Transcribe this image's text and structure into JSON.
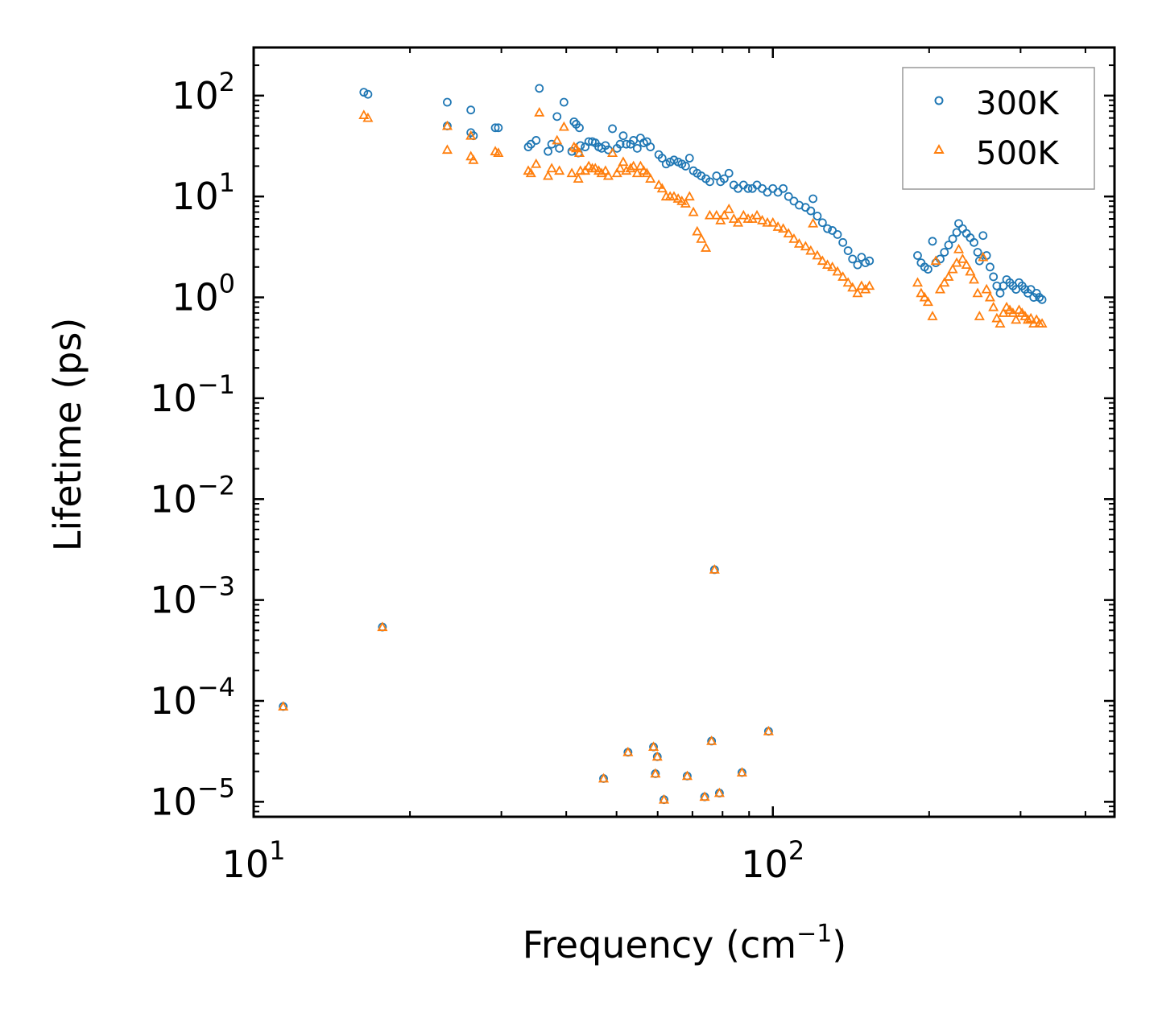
{
  "chart_data": {
    "type": "scatter",
    "title": "",
    "xlabel": "Frequency (cm",
    "xlabel_sup": "−1",
    "xlabel_suffix": ")",
    "ylabel": "Lifetime (ps)",
    "xscale": "log",
    "yscale": "log",
    "xlim": [
      10,
      455
    ],
    "ylim": [
      7.1e-06,
      300
    ],
    "x_ticks": [
      {
        "value": 10,
        "base": "10",
        "exp": "1"
      },
      {
        "value": 100,
        "base": "10",
        "exp": "2"
      }
    ],
    "y_ticks": [
      {
        "value": 100,
        "base": "10",
        "exp": "2"
      },
      {
        "value": 10,
        "base": "10",
        "exp": "1"
      },
      {
        "value": 1,
        "base": "10",
        "exp": "0"
      },
      {
        "value": 0.1,
        "base": "10",
        "exp": "−1"
      },
      {
        "value": 0.01,
        "base": "10",
        "exp": "−2"
      },
      {
        "value": 0.001,
        "base": "10",
        "exp": "−3"
      },
      {
        "value": 0.0001,
        "base": "10",
        "exp": "−4"
      },
      {
        "value": 1e-05,
        "base": "10",
        "exp": "−5"
      }
    ],
    "legend_position": "top-right",
    "series": [
      {
        "name": "300K",
        "marker": "circle",
        "color": "#1f77b4",
        "points": [
          [
            11.4,
            8.8e-05
          ],
          [
            16.3,
            108
          ],
          [
            16.6,
            103
          ],
          [
            17.7,
            0.00054
          ],
          [
            23.6,
            86
          ],
          [
            23.6,
            50
          ],
          [
            26.2,
            72
          ],
          [
            26.2,
            43
          ],
          [
            26.5,
            40
          ],
          [
            29.2,
            48
          ],
          [
            29.6,
            48
          ],
          [
            33.8,
            31
          ],
          [
            34.2,
            33
          ],
          [
            35.0,
            36
          ],
          [
            35.5,
            118
          ],
          [
            36.9,
            28
          ],
          [
            37.5,
            33
          ],
          [
            38.4,
            62
          ],
          [
            38.8,
            30
          ],
          [
            39.6,
            86
          ],
          [
            41.0,
            28
          ],
          [
            41.4,
            55
          ],
          [
            41.8,
            52
          ],
          [
            42.2,
            27
          ],
          [
            42.4,
            48
          ],
          [
            42.6,
            32
          ],
          [
            43.5,
            31
          ],
          [
            44.2,
            35
          ],
          [
            44.9,
            35
          ],
          [
            45.5,
            34
          ],
          [
            46.2,
            31
          ],
          [
            46.8,
            30
          ],
          [
            47.2,
            1.7e-05
          ],
          [
            47.6,
            32
          ],
          [
            48.2,
            29
          ],
          [
            49.1,
            47
          ],
          [
            50.1,
            30
          ],
          [
            50.8,
            33
          ],
          [
            51.5,
            40
          ],
          [
            52.2,
            33
          ],
          [
            52.6,
            3.1e-05
          ],
          [
            53.2,
            33
          ],
          [
            53.9,
            36
          ],
          [
            54.8,
            30
          ],
          [
            55.6,
            38
          ],
          [
            56.4,
            34
          ],
          [
            57.2,
            35
          ],
          [
            58.1,
            31
          ],
          [
            58.9,
            3.5e-05
          ],
          [
            59.4,
            1.9e-05
          ],
          [
            59.9,
            2.8e-05
          ],
          [
            60.3,
            26
          ],
          [
            61.2,
            24
          ],
          [
            61.7,
            1.05e-05
          ],
          [
            62.3,
            21
          ],
          [
            63.4,
            22
          ],
          [
            64.5,
            23
          ],
          [
            65.7,
            22
          ],
          [
            66.8,
            21
          ],
          [
            67.9,
            20
          ],
          [
            68.4,
            1.8e-05
          ],
          [
            69.1,
            24
          ],
          [
            70.3,
            18
          ],
          [
            71.5,
            17
          ],
          [
            72.8,
            16
          ],
          [
            73.9,
            1.12e-05
          ],
          [
            74.3,
            15
          ],
          [
            75.6,
            14
          ],
          [
            76.2,
            4e-05
          ],
          [
            77.2,
            0.002
          ],
          [
            77.9,
            16
          ],
          [
            78.9,
            1.22e-05
          ],
          [
            79.3,
            14
          ],
          [
            80.6,
            15
          ],
          [
            82.3,
            17
          ],
          [
            84.1,
            13
          ],
          [
            85.7,
            12
          ],
          [
            87.2,
            1.95e-05
          ],
          [
            87.8,
            13
          ],
          [
            89.6,
            12
          ],
          [
            91.3,
            12
          ],
          [
            93.2,
            13
          ],
          [
            95.4,
            12
          ],
          [
            97.6,
            11
          ],
          [
            98.1,
            5e-05
          ],
          [
            100.0,
            12
          ],
          [
            102.3,
            11
          ],
          [
            104.7,
            12
          ],
          [
            107.2,
            10
          ],
          [
            109.8,
            9.0
          ],
          [
            112.4,
            8.2
          ],
          [
            115.6,
            7.8
          ],
          [
            118.3,
            7.2
          ],
          [
            119.5,
            9.5
          ],
          [
            121.8,
            6.4
          ],
          [
            124.6,
            5.5
          ],
          [
            127.4,
            4.8
          ],
          [
            130.2,
            4.6
          ],
          [
            133.2,
            4.2
          ],
          [
            136.4,
            3.5
          ],
          [
            139.6,
            2.9
          ],
          [
            142.4,
            2.4
          ],
          [
            145.6,
            2.1
          ],
          [
            148.2,
            2.5
          ],
          [
            150.8,
            2.2
          ],
          [
            153.5,
            2.3
          ],
          [
            190.0,
            2.6
          ],
          [
            193.0,
            2.2
          ],
          [
            196.0,
            2.0
          ],
          [
            199.0,
            1.9
          ],
          [
            203.0,
            3.6
          ],
          [
            206.0,
            2.2
          ],
          [
            210.0,
            2.4
          ],
          [
            214.0,
            2.8
          ],
          [
            218.0,
            3.3
          ],
          [
            222.0,
            3.8
          ],
          [
            226.0,
            4.4
          ],
          [
            228.0,
            5.4
          ],
          [
            232.0,
            4.8
          ],
          [
            236.0,
            4.3
          ],
          [
            240.0,
            3.9
          ],
          [
            244.0,
            3.5
          ],
          [
            248.0,
            2.8
          ],
          [
            250.0,
            2.3
          ],
          [
            254.0,
            4.1
          ],
          [
            258.0,
            2.6
          ],
          [
            262.0,
            2.0
          ],
          [
            266.0,
            1.6
          ],
          [
            270.0,
            1.3
          ],
          [
            274.0,
            1.1
          ],
          [
            278.0,
            1.3
          ],
          [
            282.0,
            1.5
          ],
          [
            286.0,
            1.4
          ],
          [
            290.0,
            1.3
          ],
          [
            294.0,
            1.2
          ],
          [
            298.0,
            1.4
          ],
          [
            302.0,
            1.3
          ],
          [
            306.0,
            1.2
          ],
          [
            310.0,
            1.1
          ],
          [
            314.0,
            1.2
          ],
          [
            318.0,
            1.0
          ],
          [
            322.0,
            1.1
          ],
          [
            326.0,
            1.0
          ],
          [
            330.0,
            0.95
          ]
        ]
      },
      {
        "name": "500K",
        "marker": "triangle",
        "color": "#ff7f0e",
        "points": [
          [
            11.4,
            8.8e-05
          ],
          [
            16.3,
            64
          ],
          [
            16.6,
            60
          ],
          [
            17.7,
            0.00054
          ],
          [
            23.6,
            50
          ],
          [
            23.6,
            29
          ],
          [
            26.2,
            40
          ],
          [
            26.2,
            25
          ],
          [
            26.5,
            23
          ],
          [
            29.2,
            28
          ],
          [
            29.6,
            27
          ],
          [
            33.8,
            18
          ],
          [
            34.2,
            17
          ],
          [
            35.0,
            21
          ],
          [
            35.5,
            68
          ],
          [
            36.9,
            16
          ],
          [
            37.5,
            19
          ],
          [
            38.4,
            36
          ],
          [
            38.8,
            18
          ],
          [
            39.6,
            49
          ],
          [
            41.0,
            17
          ],
          [
            41.4,
            31
          ],
          [
            41.8,
            30
          ],
          [
            42.2,
            15
          ],
          [
            42.4,
            27
          ],
          [
            42.6,
            18
          ],
          [
            43.5,
            18
          ],
          [
            44.2,
            20
          ],
          [
            44.9,
            19
          ],
          [
            45.5,
            19
          ],
          [
            46.2,
            18
          ],
          [
            46.8,
            17
          ],
          [
            47.2,
            1.7e-05
          ],
          [
            47.6,
            18
          ],
          [
            48.2,
            16
          ],
          [
            49.1,
            27
          ],
          [
            50.1,
            17
          ],
          [
            50.8,
            19
          ],
          [
            51.5,
            22
          ],
          [
            52.2,
            18
          ],
          [
            52.6,
            3.1e-05
          ],
          [
            53.2,
            19
          ],
          [
            53.9,
            20
          ],
          [
            54.8,
            17
          ],
          [
            55.6,
            20
          ],
          [
            56.4,
            18
          ],
          [
            57.2,
            17
          ],
          [
            58.1,
            15
          ],
          [
            58.9,
            3.5e-05
          ],
          [
            59.4,
            1.9e-05
          ],
          [
            59.9,
            2.8e-05
          ],
          [
            60.3,
            13
          ],
          [
            61.2,
            12
          ],
          [
            61.7,
            1.05e-05
          ],
          [
            62.3,
            10
          ],
          [
            63.4,
            10
          ],
          [
            64.5,
            10
          ],
          [
            65.7,
            9.5
          ],
          [
            66.8,
            9
          ],
          [
            67.9,
            8.5
          ],
          [
            68.4,
            1.8e-05
          ],
          [
            69.1,
            10
          ],
          [
            70.3,
            7
          ],
          [
            71.5,
            4.5
          ],
          [
            72.8,
            3.8
          ],
          [
            73.9,
            1.12e-05
          ],
          [
            74.3,
            3.1
          ],
          [
            75.6,
            6.5
          ],
          [
            76.2,
            4e-05
          ],
          [
            77.2,
            0.002
          ],
          [
            77.9,
            6.5
          ],
          [
            78.9,
            1.22e-05
          ],
          [
            79.3,
            5.8
          ],
          [
            80.6,
            6.5
          ],
          [
            82.3,
            7.5
          ],
          [
            84.1,
            6.0
          ],
          [
            85.7,
            5.5
          ],
          [
            87.2,
            1.95e-05
          ],
          [
            87.8,
            6.5
          ],
          [
            89.6,
            6.0
          ],
          [
            91.3,
            6.0
          ],
          [
            93.2,
            6.5
          ],
          [
            95.4,
            5.8
          ],
          [
            97.6,
            5.5
          ],
          [
            98.1,
            5e-05
          ],
          [
            100.0,
            5.5
          ],
          [
            102.3,
            5.0
          ],
          [
            104.7,
            4.8
          ],
          [
            107.2,
            4.3
          ],
          [
            109.8,
            3.8
          ],
          [
            112.4,
            3.4
          ],
          [
            115.6,
            3.2
          ],
          [
            118.3,
            2.9
          ],
          [
            119.5,
            5.4
          ],
          [
            121.8,
            2.6
          ],
          [
            124.6,
            2.3
          ],
          [
            127.4,
            2.1
          ],
          [
            130.2,
            2.0
          ],
          [
            133.2,
            1.8
          ],
          [
            136.4,
            1.6
          ],
          [
            139.6,
            1.4
          ],
          [
            142.4,
            1.25
          ],
          [
            145.6,
            1.1
          ],
          [
            148.2,
            1.3
          ],
          [
            150.8,
            1.2
          ],
          [
            153.5,
            1.3
          ],
          [
            190.0,
            1.4
          ],
          [
            193.0,
            1.1
          ],
          [
            196.0,
            1.0
          ],
          [
            199.0,
            0.9
          ],
          [
            203.0,
            0.65
          ],
          [
            206.0,
            2.3
          ],
          [
            210.0,
            1.2
          ],
          [
            214.0,
            1.4
          ],
          [
            218.0,
            1.6
          ],
          [
            222.0,
            1.9
          ],
          [
            226.0,
            2.2
          ],
          [
            228.0,
            3.0
          ],
          [
            232.0,
            2.4
          ],
          [
            236.0,
            2.1
          ],
          [
            240.0,
            1.8
          ],
          [
            244.0,
            1.5
          ],
          [
            248.0,
            1.1
          ],
          [
            250.0,
            0.65
          ],
          [
            254.0,
            2.5
          ],
          [
            258.0,
            1.2
          ],
          [
            262.0,
            1.0
          ],
          [
            266.0,
            0.8
          ],
          [
            270.0,
            0.62
          ],
          [
            274.0,
            0.55
          ],
          [
            278.0,
            0.7
          ],
          [
            282.0,
            0.8
          ],
          [
            286.0,
            0.75
          ],
          [
            290.0,
            0.7
          ],
          [
            294.0,
            0.6
          ],
          [
            298.0,
            0.75
          ],
          [
            302.0,
            0.7
          ],
          [
            306.0,
            0.65
          ],
          [
            310.0,
            0.6
          ],
          [
            314.0,
            0.62
          ],
          [
            318.0,
            0.55
          ],
          [
            322.0,
            0.6
          ],
          [
            326.0,
            0.55
          ],
          [
            330.0,
            0.55
          ]
        ]
      }
    ]
  }
}
